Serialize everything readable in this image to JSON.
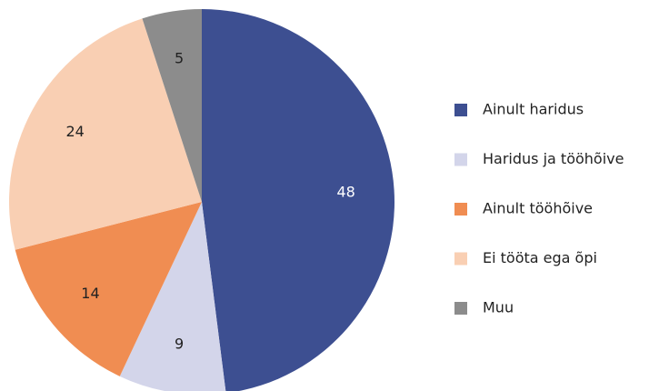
{
  "chart_data": {
    "type": "pie",
    "categories": [
      "Ainult haridus",
      "Haridus ja tööhõive",
      "Ainult tööhõive",
      "Ei tööta ega õpi",
      "Muu"
    ],
    "values": [
      48,
      9,
      14,
      24,
      5
    ],
    "colors": [
      "#3d4f91",
      "#d3d5ea",
      "#f08d52",
      "#f9cfb3",
      "#8c8c8c"
    ],
    "legend": "right"
  }
}
